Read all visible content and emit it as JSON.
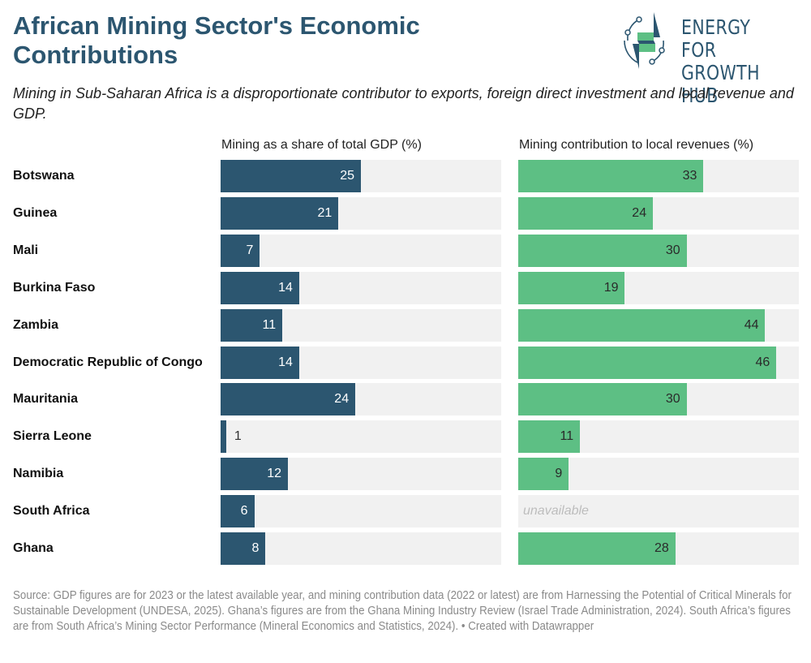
{
  "header": {
    "title": "African Mining Sector's Economic Contributions",
    "subtitle": "Mining in Sub-Saharan Africa is a disproportionate contributor to exports, foreign direct investment and local revenue and GDP.",
    "logo_line1": "ENERGY FOR",
    "logo_line2": "GROWTH HUB"
  },
  "colors": {
    "title": "#2c5670",
    "gdp_bar": "#2c5670",
    "revenue_bar": "#5dbf84",
    "track": "#f1f1f1"
  },
  "chart_data": {
    "type": "bar",
    "orientation": "horizontal",
    "categories": [
      "Botswana",
      "Guinea",
      "Mali",
      "Burkina Faso",
      "Zambia",
      "Democratic Republic of Congo",
      "Mauritania",
      "Sierra Leone",
      "Namibia",
      "South Africa",
      "Ghana"
    ],
    "series": [
      {
        "name": "Mining as a share of total GDP (%)",
        "values": [
          25,
          21,
          7,
          14,
          11,
          14,
          24,
          1,
          12,
          6,
          8
        ],
        "range": [
          0,
          50
        ]
      },
      {
        "name": "Mining contribution to local revenues (%)",
        "values": [
          33,
          24,
          30,
          19,
          44,
          46,
          30,
          11,
          9,
          null,
          28
        ],
        "range": [
          0,
          50
        ]
      }
    ],
    "missing_label": "unavailable",
    "grid": false,
    "legend": "none"
  },
  "footer": {
    "source": "Source: GDP figures are for 2023 or the latest available year, and mining contribution data (2022 or latest) are from Harnessing the Potential of Critical Minerals for Sustainable Development (UNDESA, 2025). Ghana’s figures are from the Ghana Mining Industry Review (Israel Trade Administration, 2024). South Africa’s figures are from South Africa’s Mining Sector Performance (Mineral Economics and Statistics, 2024). • Created with Datawrapper"
  }
}
